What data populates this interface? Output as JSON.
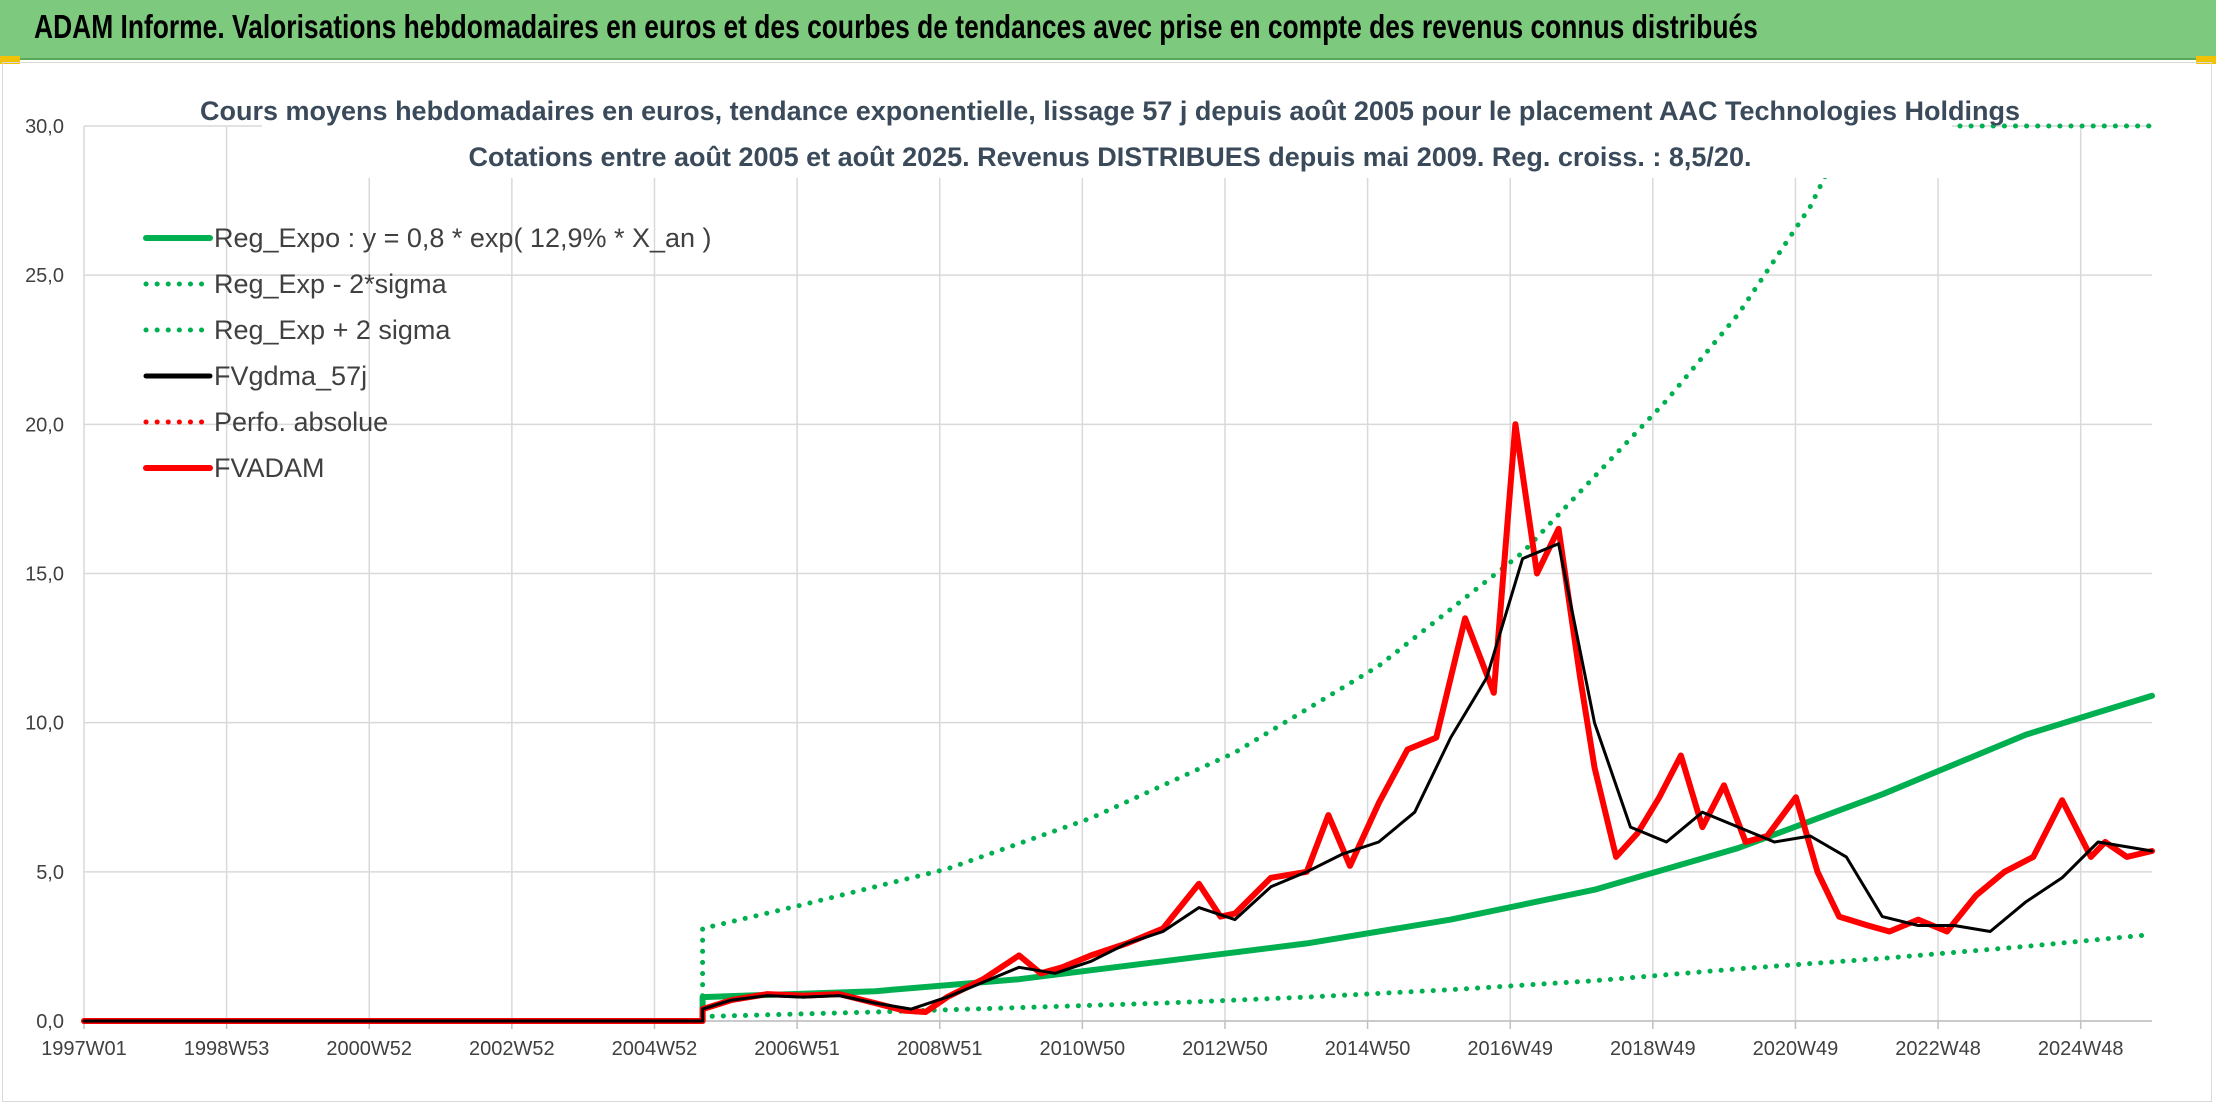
{
  "header": {
    "title": "ADAM Informe. Valorisations hebdomadaires en euros et des courbes de tendances avec prise en compte des revenus connus distribués",
    "background": "#7dc97d"
  },
  "chart_data": {
    "type": "line",
    "title": "Cours moyens hebdomadaires en euros, tendance exponentielle, lissage 57 j depuis août 2005 pour le placement AAC Technologies Holdings",
    "subtitle": "Cotations entre août 2005 et août 2025. Revenus DISTRIBUES depuis mai 2009. Reg. croiss. : 8,5/20.",
    "xlabel": "",
    "ylabel": "",
    "x_ticks": [
      "1997W01",
      "1998W53",
      "2000W52",
      "2002W52",
      "2004W52",
      "2006W51",
      "2008W51",
      "2010W50",
      "2012W50",
      "2014W50",
      "2016W49",
      "2018W49",
      "2020W49",
      "2022W48",
      "2024W48"
    ],
    "y_ticks": [
      "0,0",
      "5,0",
      "10,0",
      "15,0",
      "20,0",
      "25,0",
      "30,0"
    ],
    "ylim": [
      0,
      30
    ],
    "xlim": [
      1997.0,
      2025.75
    ],
    "grid": true,
    "legend_position": "top-left",
    "series": [
      {
        "name": "Reg_Expo : y = 0,8 * exp( 12,9% *  X_an )",
        "color": "#00b050",
        "style": "solid",
        "x": [
          1997.0,
          2005.6,
          2005.6,
          2008,
          2010,
          2012,
          2014,
          2016,
          2018,
          2020,
          2022,
          2024,
          2025.75
        ],
        "y": [
          0,
          0,
          0.8,
          1.0,
          1.4,
          2.0,
          2.6,
          3.4,
          4.4,
          5.8,
          7.6,
          9.6,
          10.9
        ]
      },
      {
        "name": "Reg_Exp - 2*sigma",
        "color": "#00b050",
        "style": "dotted",
        "x": [
          1997.0,
          2005.6,
          2005.6,
          2008,
          2010,
          2012,
          2014,
          2016,
          2018,
          2020,
          2022,
          2024,
          2025.75
        ],
        "y": [
          0,
          0,
          0.15,
          0.3,
          0.45,
          0.6,
          0.8,
          1.05,
          1.35,
          1.75,
          2.1,
          2.5,
          2.9
        ]
      },
      {
        "name": "Reg_Exp + 2 sigma",
        "color": "#00b050",
        "style": "dotted",
        "x": [
          1997.0,
          2005.6,
          2005.6,
          2007,
          2009,
          2011,
          2013,
          2015,
          2017,
          2019,
          2020,
          2021,
          2021.55,
          2022,
          2024,
          2025.75
        ],
        "y": [
          0,
          0,
          3.1,
          3.9,
          5.1,
          6.8,
          9.0,
          11.9,
          15.7,
          20.8,
          23.7,
          27.3,
          30.0,
          30.0,
          30.0,
          30.0
        ]
      },
      {
        "name": "FVgdma_57j",
        "color": "#000000",
        "style": "solid",
        "x": [
          1997.0,
          2005.6,
          2005.6,
          2006.0,
          2006.5,
          2007,
          2007.5,
          2008,
          2008.5,
          2009,
          2009.5,
          2010,
          2010.5,
          2011,
          2011.5,
          2012,
          2012.5,
          2013,
          2013.5,
          2014,
          2014.5,
          2015,
          2015.5,
          2016,
          2016.5,
          2017,
          2017.5,
          2018,
          2018.5,
          2019,
          2019.5,
          2020,
          2020.5,
          2021,
          2021.5,
          2022,
          2022.5,
          2023,
          2023.5,
          2024,
          2024.5,
          2025,
          2025.75
        ],
        "y": [
          0,
          0,
          0.4,
          0.7,
          0.85,
          0.8,
          0.85,
          0.6,
          0.4,
          0.8,
          1.3,
          1.8,
          1.6,
          2.0,
          2.6,
          3.0,
          3.8,
          3.4,
          4.5,
          5.0,
          5.6,
          6.0,
          7.0,
          9.5,
          11.5,
          15.5,
          16.0,
          10.0,
          6.5,
          6.0,
          7.0,
          6.5,
          6.0,
          6.2,
          5.5,
          3.5,
          3.2,
          3.2,
          3.0,
          4.0,
          4.8,
          6.0,
          5.7
        ]
      },
      {
        "name": "Perfo. absolue",
        "color": "#ff0000",
        "style": "dotted",
        "x": [],
        "y": []
      },
      {
        "name": "FVADAM",
        "color": "#ff0000",
        "style": "solid",
        "x": [
          1997.0,
          2005.6,
          2005.6,
          2006.0,
          2006.5,
          2007,
          2007.5,
          2008,
          2008.4,
          2008.7,
          2009,
          2009.5,
          2010,
          2010.3,
          2010.6,
          2011,
          2011.5,
          2012,
          2012.5,
          2012.8,
          2013,
          2013.5,
          2014,
          2014.3,
          2014.6,
          2015,
          2015.4,
          2015.8,
          2016.2,
          2016.6,
          2016.9,
          2017.2,
          2017.5,
          2017.8,
          2018,
          2018.3,
          2018.6,
          2018.9,
          2019.2,
          2019.5,
          2019.8,
          2020.1,
          2020.4,
          2020.8,
          2021.1,
          2021.4,
          2021.8,
          2022.1,
          2022.5,
          2022.9,
          2023.3,
          2023.7,
          2024.1,
          2024.5,
          2024.9,
          2025.1,
          2025.4,
          2025.75
        ],
        "y": [
          0,
          0,
          0.4,
          0.7,
          0.9,
          0.85,
          0.9,
          0.6,
          0.35,
          0.3,
          0.8,
          1.4,
          2.2,
          1.6,
          1.8,
          2.2,
          2.6,
          3.1,
          4.6,
          3.5,
          3.6,
          4.8,
          5.0,
          6.9,
          5.2,
          7.3,
          9.1,
          9.5,
          13.5,
          11.0,
          20.0,
          15.0,
          16.5,
          11.5,
          8.5,
          5.5,
          6.3,
          7.5,
          8.9,
          6.5,
          7.9,
          6.0,
          6.2,
          7.5,
          5.0,
          3.5,
          3.2,
          3.0,
          3.4,
          3.0,
          4.2,
          5.0,
          5.5,
          7.4,
          5.5,
          6.0,
          5.5,
          5.7
        ]
      }
    ]
  }
}
